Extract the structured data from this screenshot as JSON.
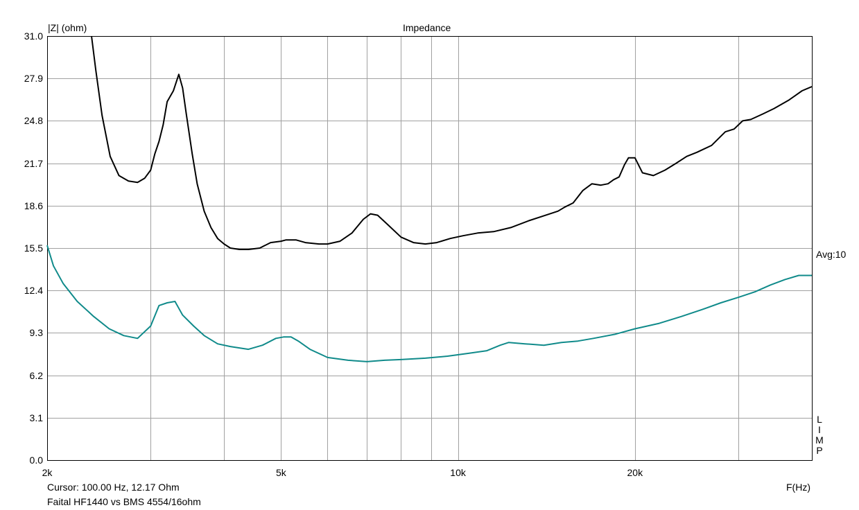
{
  "chart_data": {
    "type": "line",
    "title": "Impedance",
    "ylabel": "|Z| (ohm)",
    "xlabel": "F(Hz)",
    "x_scale": "log",
    "xlim": [
      2000,
      40000
    ],
    "ylim": [
      0,
      31.0
    ],
    "grid": true,
    "y_ticks": [
      "31.0",
      "27.9",
      "24.8",
      "21.7",
      "18.6",
      "15.5",
      "12.4",
      "9.3",
      "6.2",
      "3.1",
      "0.0"
    ],
    "x_tick_labels": [
      {
        "value": 2000,
        "label": "2k"
      },
      {
        "value": 5000,
        "label": "5k"
      },
      {
        "value": 10000,
        "label": "10k"
      },
      {
        "value": 20000,
        "label": "20k"
      }
    ],
    "x_gridlines": [
      2000,
      3000,
      4000,
      5000,
      6000,
      7000,
      8000,
      9000,
      10000,
      20000,
      30000,
      40000
    ],
    "series": [
      {
        "color": "#000000",
        "x": [
          2380,
          2420,
          2480,
          2560,
          2650,
          2750,
          2850,
          2930,
          3000,
          3050,
          3100,
          3150,
          3200,
          3280,
          3350,
          3400,
          3450,
          3530,
          3600,
          3700,
          3800,
          3900,
          4000,
          4100,
          4250,
          4400,
          4600,
          4800,
          5000,
          5100,
          5300,
          5500,
          5800,
          6000,
          6300,
          6600,
          6900,
          7100,
          7300,
          7600,
          8000,
          8400,
          8800,
          9200,
          9700,
          10200,
          10800,
          11500,
          12300,
          13200,
          14100,
          14800,
          15200,
          15700,
          16300,
          16900,
          17500,
          18000,
          18400,
          18800,
          19200,
          19500,
          20000,
          20600,
          21500,
          22500,
          23500,
          24500,
          25500,
          27000,
          28500,
          29500,
          30500,
          31500,
          33000,
          34500,
          36500,
          38500,
          40000
        ],
        "y": [
          31.0,
          28.5,
          25.2,
          22.2,
          20.8,
          20.4,
          20.3,
          20.6,
          21.2,
          22.4,
          23.3,
          24.5,
          26.2,
          27.0,
          28.2,
          27.2,
          25.3,
          22.4,
          20.2,
          18.2,
          17.0,
          16.2,
          15.8,
          15.5,
          15.4,
          15.4,
          15.5,
          15.9,
          16.0,
          16.1,
          16.1,
          15.9,
          15.8,
          15.8,
          16.0,
          16.6,
          17.6,
          18.0,
          17.9,
          17.2,
          16.3,
          15.9,
          15.8,
          15.9,
          16.2,
          16.4,
          16.6,
          16.7,
          17.0,
          17.5,
          17.9,
          18.2,
          18.5,
          18.8,
          19.7,
          20.2,
          20.1,
          20.2,
          20.5,
          20.7,
          21.6,
          22.1,
          22.1,
          21.0,
          20.8,
          21.2,
          21.7,
          22.2,
          22.5,
          23.0,
          24.0,
          24.2,
          24.8,
          24.9,
          25.3,
          25.7,
          26.3,
          27.0,
          27.3
        ]
      },
      {
        "color": "#0f8a8a",
        "x": [
          2000,
          2050,
          2130,
          2250,
          2400,
          2550,
          2700,
          2850,
          3000,
          3100,
          3200,
          3300,
          3400,
          3550,
          3700,
          3900,
          4100,
          4400,
          4650,
          4900,
          5050,
          5200,
          5350,
          5600,
          6000,
          6500,
          7000,
          7500,
          8000,
          8800,
          9600,
          10400,
          11200,
          11800,
          12200,
          13000,
          14000,
          15000,
          16000,
          17000,
          18500,
          20000,
          22000,
          24000,
          26000,
          28000,
          30000,
          32000,
          34000,
          36000,
          38000,
          40000
        ],
        "y": [
          15.7,
          14.2,
          12.9,
          11.6,
          10.5,
          9.6,
          9.1,
          8.9,
          9.8,
          11.3,
          11.5,
          11.6,
          10.6,
          9.8,
          9.1,
          8.5,
          8.3,
          8.1,
          8.4,
          8.9,
          9.0,
          9.0,
          8.7,
          8.1,
          7.5,
          7.3,
          7.2,
          7.3,
          7.35,
          7.45,
          7.6,
          7.8,
          8.0,
          8.4,
          8.6,
          8.5,
          8.4,
          8.6,
          8.7,
          8.9,
          9.2,
          9.6,
          10.0,
          10.5,
          11.0,
          11.5,
          11.9,
          12.3,
          12.8,
          13.2,
          13.5,
          13.5
        ]
      }
    ],
    "avg_label": "Avg:10",
    "right_letters": [
      "L",
      "I",
      "M",
      "P"
    ],
    "cursor_text": "Cursor: 100.00 Hz, 12.17 Ohm",
    "caption": "Faital HF1440 vs BMS 4554/16ohm"
  }
}
